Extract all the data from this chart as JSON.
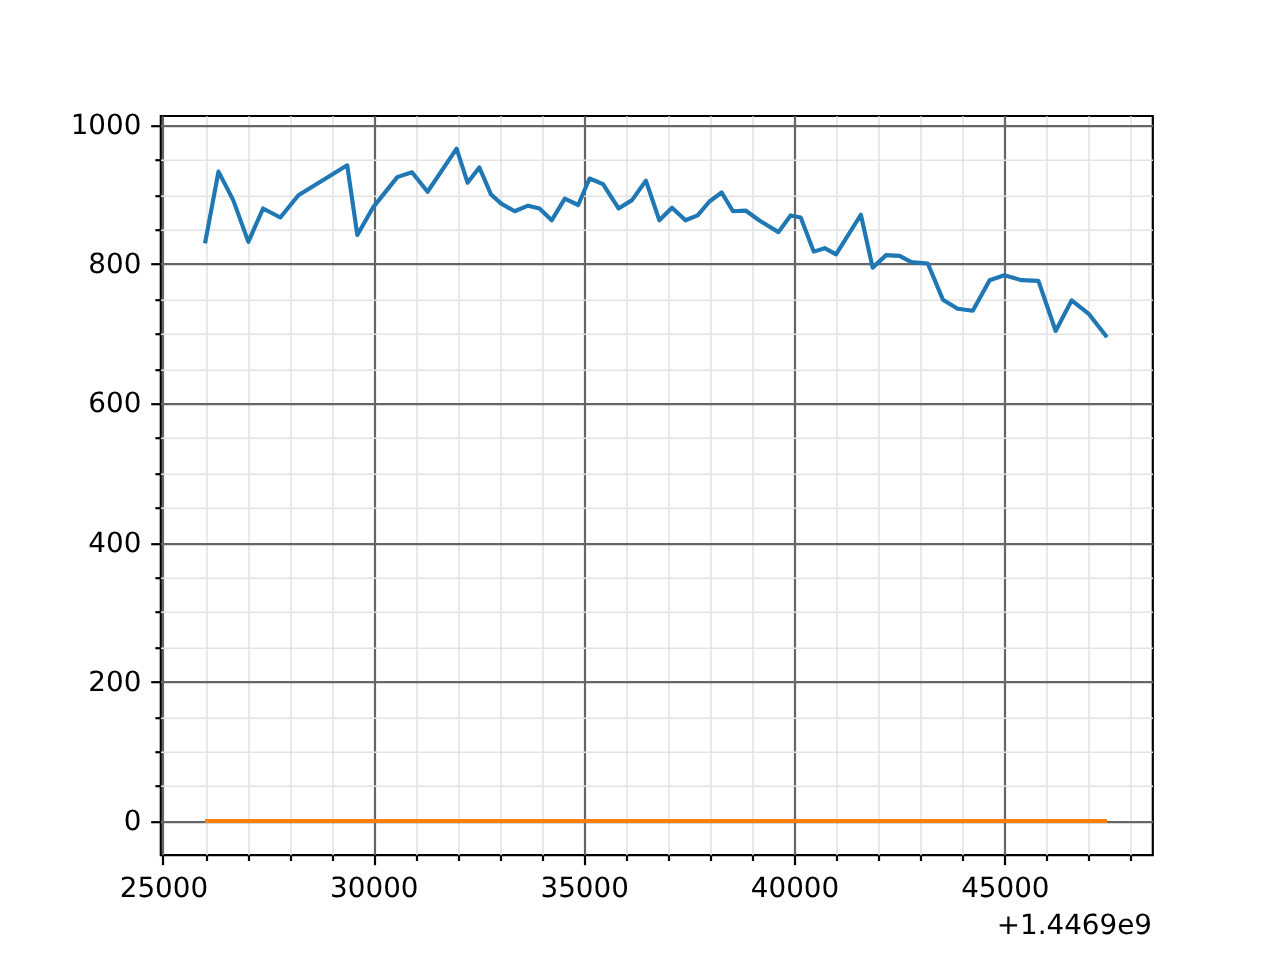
{
  "chart_data": {
    "type": "line",
    "x": [
      26000,
      26320,
      26670,
      27030,
      27380,
      27790,
      28220,
      29380,
      29620,
      30000,
      30570,
      30920,
      31290,
      31980,
      32240,
      32520,
      32800,
      33040,
      33360,
      33680,
      33950,
      34240,
      34550,
      34870,
      35140,
      35460,
      35830,
      36150,
      36480,
      36800,
      37100,
      37420,
      37710,
      37990,
      38280,
      38550,
      38850,
      39170,
      39630,
      39920,
      40160,
      40470,
      40730,
      41000,
      41590,
      41870,
      42190,
      42510,
      42790,
      43180,
      43540,
      43890,
      44250,
      44650,
      45000,
      45410,
      45810,
      46220,
      46600,
      47000,
      47440
    ],
    "series": [
      {
        "color": "#1f77b4",
        "values": [
          830,
          933,
          892,
          832,
          880,
          867,
          899,
          942,
          842,
          882,
          925,
          932,
          904,
          966,
          917,
          939,
          900,
          887,
          876,
          884,
          880,
          863,
          894,
          885,
          923,
          915,
          880,
          892,
          920,
          863,
          881,
          863,
          870,
          890,
          903,
          876,
          877,
          863,
          846,
          870,
          867,
          818,
          823,
          814,
          871,
          795,
          813,
          812,
          803,
          801,
          749,
          736,
          733,
          777,
          784,
          777,
          776,
          704,
          748,
          729,
          695
        ]
      },
      {
        "color": "#ff7f0e",
        "x": [
          26000,
          47440
        ],
        "values": [
          0,
          0
        ]
      }
    ],
    "xlim": [
      24930,
      48510
    ],
    "ylim": [
      -48,
      1014
    ],
    "xticks": [
      25000,
      {
        "value": 26000,
        "label": null
      },
      {
        "value": 27000,
        "label": null
      },
      {
        "value": 28000,
        "label": null
      },
      {
        "value": 29000,
        "label": null
      },
      30000,
      {
        "value": 31000,
        "label": null
      },
      {
        "value": 32000,
        "label": null
      },
      {
        "value": 33000,
        "label": null
      },
      {
        "value": 34000,
        "label": null
      },
      35000,
      {
        "value": 36000,
        "label": null
      },
      {
        "value": 37000,
        "label": null
      },
      {
        "value": 38000,
        "label": null
      },
      {
        "value": 39000,
        "label": null
      },
      40000,
      {
        "value": 41000,
        "label": null
      },
      {
        "value": 42000,
        "label": null
      },
      {
        "value": 43000,
        "label": null
      },
      {
        "value": 44000,
        "label": null
      },
      45000,
      {
        "value": 46000,
        "label": null
      },
      {
        "value": 47000,
        "label": null
      },
      {
        "value": 48000,
        "label": null
      }
    ],
    "yticks": [
      0,
      {
        "value": 50,
        "label": null
      },
      {
        "value": 100,
        "label": null
      },
      {
        "value": 150,
        "label": null
      },
      200,
      {
        "value": 250,
        "label": null
      },
      {
        "value": 300,
        "label": null
      },
      {
        "value": 350,
        "label": null
      },
      400,
      {
        "value": 450,
        "label": null
      },
      {
        "value": 500,
        "label": null
      },
      {
        "value": 550,
        "label": null
      },
      600,
      {
        "value": 650,
        "label": null
      },
      {
        "value": 700,
        "label": null
      },
      {
        "value": 750,
        "label": null
      },
      800,
      {
        "value": 850,
        "label": null
      },
      {
        "value": 900,
        "label": null
      },
      {
        "value": 950,
        "label": null
      },
      1000
    ],
    "grid": true,
    "annotations": [
      "+1.4469e9"
    ]
  }
}
